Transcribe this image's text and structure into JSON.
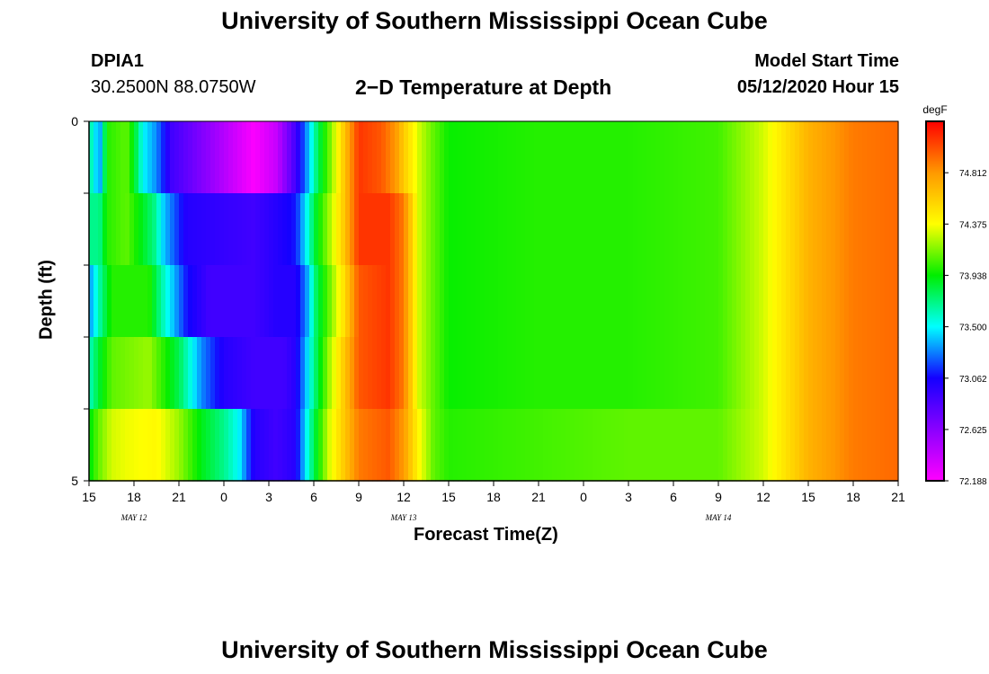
{
  "header": {
    "title": "University of Southern Mississippi Ocean Cube",
    "station_id": "DPIA1",
    "coordinates": "30.2500N 88.0750W",
    "subtitle": "2−D Temperature at Depth",
    "model_start_label": "Model Start Time",
    "model_start_value": "05/12/2020 Hour 15"
  },
  "footer": {
    "title": "University of Southern Mississippi Ocean Cube"
  },
  "chart_data": {
    "type": "heatmap",
    "title": "2−D Temperature at Depth",
    "xlabel": "Forecast Time(Z)",
    "ylabel": "Depth (ft)",
    "x_tick_labels": [
      "15",
      "18",
      "21",
      "0",
      "3",
      "6",
      "9",
      "12",
      "15",
      "18",
      "21",
      "0",
      "3",
      "6",
      "9",
      "12",
      "15",
      "18",
      "21"
    ],
    "date_labels": [
      {
        "label": "MAY 12",
        "tick_index": 1
      },
      {
        "label": "MAY 13",
        "tick_index": 7
      },
      {
        "label": "MAY 14",
        "tick_index": 14
      }
    ],
    "x_hours_range": [
      0,
      54
    ],
    "y_range": [
      0,
      5
    ],
    "y_tick_labels": [
      "0",
      "5"
    ],
    "colorbar": {
      "unit": "degF",
      "min": 72.188,
      "max": 75.25,
      "tick_labels": [
        "74.812",
        "74.375",
        "73.938",
        "73.500",
        "73.062",
        "72.625",
        "72.188"
      ],
      "stops": [
        "#ff00ff",
        "#8a00ff",
        "#1400ff",
        "#00ffff",
        "#00ee00",
        "#ffff00",
        "#ff9900",
        "#ff0000"
      ]
    },
    "depth_rows": [
      0.5,
      1.5,
      2.5,
      3.5,
      4.5
    ],
    "row_values": [
      [
        [
          0,
          73.7
        ],
        [
          0.7,
          73.3
        ],
        [
          1.2,
          74.0
        ],
        [
          2.5,
          74.1
        ],
        [
          3.0,
          73.9
        ],
        [
          3.6,
          73.5
        ],
        [
          4.5,
          73.3
        ],
        [
          5.5,
          72.9
        ],
        [
          8,
          72.6
        ],
        [
          11,
          72.2
        ],
        [
          12.5,
          72.4
        ],
        [
          13.8,
          72.9
        ],
        [
          14.5,
          73.3
        ],
        [
          15.3,
          73.8
        ],
        [
          16,
          74.1
        ],
        [
          17,
          74.6
        ],
        [
          18,
          75.1
        ],
        [
          19.5,
          75.0
        ],
        [
          20.5,
          74.8
        ],
        [
          21,
          74.6
        ],
        [
          22,
          74.3
        ],
        [
          23,
          74.1
        ],
        [
          24,
          73.95
        ],
        [
          30,
          74.0
        ],
        [
          36,
          74.0
        ],
        [
          42,
          74.05
        ],
        [
          45,
          74.3
        ],
        [
          48,
          74.7
        ],
        [
          51,
          74.9
        ],
        [
          54,
          74.95
        ]
      ],
      [
        [
          0,
          73.7
        ],
        [
          0.7,
          73.7
        ],
        [
          1.2,
          74.0
        ],
        [
          2.5,
          74.1
        ],
        [
          3.5,
          73.9
        ],
        [
          4.4,
          73.7
        ],
        [
          5.0,
          73.4
        ],
        [
          6.5,
          73.0
        ],
        [
          11,
          72.9
        ],
        [
          12.5,
          73.0
        ],
        [
          13.8,
          73.1
        ],
        [
          14.5,
          73.5
        ],
        [
          15.2,
          73.9
        ],
        [
          16,
          74.2
        ],
        [
          17,
          74.6
        ],
        [
          18,
          75.1
        ],
        [
          20,
          75.1
        ],
        [
          21,
          74.9
        ],
        [
          22,
          74.3
        ],
        [
          23,
          74.1
        ],
        [
          24,
          73.95
        ],
        [
          30,
          74.0
        ],
        [
          36,
          74.0
        ],
        [
          42,
          74.05
        ],
        [
          45,
          74.3
        ],
        [
          48,
          74.7
        ],
        [
          51,
          74.9
        ],
        [
          54,
          74.95
        ]
      ],
      [
        [
          0,
          73.3
        ],
        [
          0.8,
          73.7
        ],
        [
          1.5,
          74.0
        ],
        [
          4,
          74.0
        ],
        [
          5.0,
          73.6
        ],
        [
          6.5,
          73.1
        ],
        [
          8,
          72.9
        ],
        [
          11,
          72.9
        ],
        [
          12.5,
          73.0
        ],
        [
          13.8,
          73.0
        ],
        [
          14.5,
          73.3
        ],
        [
          15.2,
          73.8
        ],
        [
          16,
          74.1
        ],
        [
          17,
          74.5
        ],
        [
          18,
          75.0
        ],
        [
          20,
          75.1
        ],
        [
          21,
          74.9
        ],
        [
          22,
          74.3
        ],
        [
          23,
          74.1
        ],
        [
          24,
          73.95
        ],
        [
          30,
          74.0
        ],
        [
          36,
          74.0
        ],
        [
          42,
          74.05
        ],
        [
          45,
          74.3
        ],
        [
          48,
          74.7
        ],
        [
          51,
          74.9
        ],
        [
          54,
          74.95
        ]
      ],
      [
        [
          0,
          73.6
        ],
        [
          0.8,
          73.9
        ],
        [
          1.5,
          74.1
        ],
        [
          4,
          74.2
        ],
        [
          6.0,
          73.8
        ],
        [
          7.5,
          73.3
        ],
        [
          9,
          73.0
        ],
        [
          11,
          72.9
        ],
        [
          13,
          72.9
        ],
        [
          13.8,
          73.0
        ],
        [
          14.5,
          73.4
        ],
        [
          15.2,
          73.8
        ],
        [
          16,
          74.2
        ],
        [
          17,
          74.6
        ],
        [
          18,
          75.0
        ],
        [
          20,
          75.1
        ],
        [
          21,
          74.9
        ],
        [
          22,
          74.3
        ],
        [
          23,
          74.1
        ],
        [
          24,
          73.95
        ],
        [
          30,
          74.0
        ],
        [
          36,
          74.0
        ],
        [
          42,
          74.05
        ],
        [
          45,
          74.3
        ],
        [
          48,
          74.7
        ],
        [
          51,
          74.9
        ],
        [
          54,
          74.95
        ]
      ],
      [
        [
          0,
          73.9
        ],
        [
          0.6,
          74.1
        ],
        [
          1.5,
          74.3
        ],
        [
          2.5,
          74.35
        ],
        [
          4.5,
          74.4
        ],
        [
          6,
          74.2
        ],
        [
          7.5,
          73.9
        ],
        [
          9,
          73.7
        ],
        [
          10,
          73.5
        ],
        [
          11,
          73.0
        ],
        [
          12.5,
          72.9
        ],
        [
          13.8,
          73.0
        ],
        [
          14.5,
          73.5
        ],
        [
          15.2,
          73.9
        ],
        [
          16,
          74.3
        ],
        [
          17,
          74.6
        ],
        [
          18,
          74.9
        ],
        [
          20,
          75.0
        ],
        [
          21,
          74.8
        ],
        [
          22,
          74.4
        ],
        [
          23,
          74.1
        ],
        [
          24,
          74.0
        ],
        [
          30,
          74.05
        ],
        [
          36,
          74.1
        ],
        [
          42,
          74.1
        ],
        [
          45,
          74.3
        ],
        [
          48,
          74.7
        ],
        [
          51,
          74.9
        ],
        [
          54,
          74.95
        ]
      ]
    ]
  }
}
